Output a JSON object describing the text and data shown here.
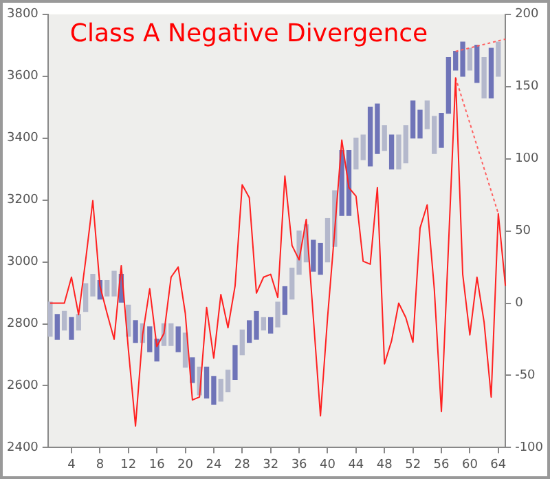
{
  "chart_data": {
    "type": "bar",
    "title": "Class A Negative Divergence",
    "xlim": [
      0.7,
      65
    ],
    "xticks": [
      4,
      8,
      12,
      16,
      20,
      24,
      28,
      32,
      36,
      40,
      44,
      48,
      52,
      56,
      60,
      64
    ],
    "ylim": [
      2400,
      3800
    ],
    "yticks": [
      2400,
      2600,
      2800,
      3000,
      3200,
      3400,
      3600,
      3800
    ],
    "y2lim": [
      -100,
      200
    ],
    "y2ticks": [
      -100,
      -50,
      0,
      50,
      100,
      150,
      200
    ],
    "marker": "none",
    "series": [
      {
        "axis": "y",
        "x": [
          1,
          2,
          3,
          4,
          5,
          6,
          7,
          8,
          9,
          10,
          11,
          12,
          13,
          14,
          15,
          16,
          17,
          18,
          19,
          20,
          21,
          22,
          23,
          24,
          25,
          26,
          27,
          28,
          29,
          30,
          31,
          32,
          33,
          34,
          35,
          36,
          37,
          38,
          39,
          40,
          41,
          42,
          43,
          44,
          45,
          46,
          47,
          48,
          49,
          50,
          51,
          52,
          53,
          54,
          55,
          56,
          57,
          58,
          59,
          60,
          61,
          62,
          63,
          64
        ],
        "base": [
          2760,
          2750,
          2780,
          2750,
          2780,
          2840,
          2890,
          2880,
          2890,
          2890,
          2870,
          2760,
          2740,
          2740,
          2710,
          2680,
          2730,
          2730,
          2710,
          2660,
          2610,
          2570,
          2560,
          2540,
          2550,
          2580,
          2620,
          2700,
          2740,
          2750,
          2780,
          2770,
          2790,
          2830,
          2880,
          2960,
          3000,
          2970,
          2960,
          3000,
          3050,
          3150,
          3150,
          3300,
          3330,
          3310,
          3350,
          3360,
          3300,
          3300,
          3320,
          3400,
          3400,
          3430,
          3350,
          3370,
          3480,
          3620,
          3600,
          3620,
          3580,
          3530,
          3530,
          3600
        ],
        "values": [
          110,
          80,
          60,
          70,
          50,
          90,
          70,
          60,
          50,
          80,
          90,
          100,
          70,
          60,
          80,
          70,
          70,
          70,
          80,
          110,
          80,
          90,
          100,
          90,
          70,
          70,
          110,
          80,
          70,
          90,
          40,
          50,
          80,
          90,
          100,
          140,
          120,
          100,
          100,
          140,
          180,
          210,
          210,
          100,
          80,
          190,
          160,
          80,
          110,
          110,
          120,
          120,
          90,
          90,
          120,
          110,
          180,
          60,
          110,
          70,
          120,
          130,
          160,
          110
        ],
        "colors": [
          "#b4b8cc",
          "#6f74b8",
          "#b4b8cc",
          "#6f74b8",
          "#b4b8cc",
          "#b4b8cc",
          "#b4b8cc",
          "#6f74b8",
          "#b4b8cc",
          "#b4b8cc",
          "#6f74b8",
          "#b4b8cc",
          "#6f74b8",
          "#b4b8cc",
          "#6f74b8",
          "#6f74b8",
          "#b4b8cc",
          "#b4b8cc",
          "#6f74b8",
          "#b4b8cc",
          "#6f74b8",
          "#b4b8cc",
          "#6f74b8",
          "#6f74b8",
          "#b4b8cc",
          "#b4b8cc",
          "#6f74b8",
          "#b4b8cc",
          "#6f74b8",
          "#6f74b8",
          "#b4b8cc",
          "#6f74b8",
          "#b4b8cc",
          "#6f74b8",
          "#b4b8cc",
          "#b4b8cc",
          "#b4b8cc",
          "#6f74b8",
          "#6f74b8",
          "#b4b8cc",
          "#b4b8cc",
          "#6f74b8",
          "#6f74b8",
          "#b4b8cc",
          "#b4b8cc",
          "#6f74b8",
          "#6f74b8",
          "#b4b8cc",
          "#6f74b8",
          "#b4b8cc",
          "#b4b8cc",
          "#6f74b8",
          "#6f74b8",
          "#b4b8cc",
          "#b4b8cc",
          "#6f74b8",
          "#6f74b8",
          "#6f74b8",
          "#6f74b8",
          "#b4b8cc",
          "#6f74b8",
          "#b4b8cc",
          "#6f74b8",
          "#b4b8cc"
        ]
      },
      {
        "type": "line",
        "axis": "y2",
        "color": "#ff2020",
        "line_style": "solid",
        "x": [
          1,
          2,
          3,
          4,
          5,
          6,
          7,
          8,
          9,
          10,
          11,
          12,
          13,
          14,
          15,
          16,
          17,
          18,
          19,
          20,
          21,
          22,
          23,
          24,
          25,
          26,
          27,
          28,
          29,
          30,
          31,
          32,
          33,
          34,
          35,
          36,
          37,
          38,
          39,
          40,
          41,
          42,
          43,
          44,
          45,
          46,
          47,
          48,
          49,
          50,
          51,
          52,
          53,
          54,
          55,
          56,
          57,
          58,
          59,
          60,
          61,
          62,
          63,
          64,
          65
        ],
        "values": [
          0,
          0,
          0,
          18,
          -8,
          30,
          71,
          12,
          -7,
          -25,
          26,
          -32,
          -85,
          -22,
          10,
          -30,
          -21,
          18,
          25,
          -7,
          -67,
          -65,
          -3,
          -38,
          6,
          -17,
          12,
          82,
          73,
          7,
          18,
          20,
          4,
          88,
          40,
          30,
          58,
          -10,
          -78,
          -10,
          50,
          113,
          80,
          74,
          29,
          27,
          80,
          -42,
          -26,
          0,
          -10,
          -27,
          52,
          68,
          10,
          -75,
          40,
          156,
          20,
          -22,
          18,
          -13,
          -65,
          62,
          12
        ]
      },
      {
        "type": "line",
        "axis": "y",
        "color": "#ff6060",
        "line_style": "dotted",
        "x": [
          58,
          65
        ],
        "values": [
          3680,
          3720
        ]
      },
      {
        "type": "line",
        "axis": "y2",
        "color": "#ff6060",
        "line_style": "dotted",
        "x": [
          58,
          64
        ],
        "values": [
          156,
          62
        ]
      }
    ]
  }
}
